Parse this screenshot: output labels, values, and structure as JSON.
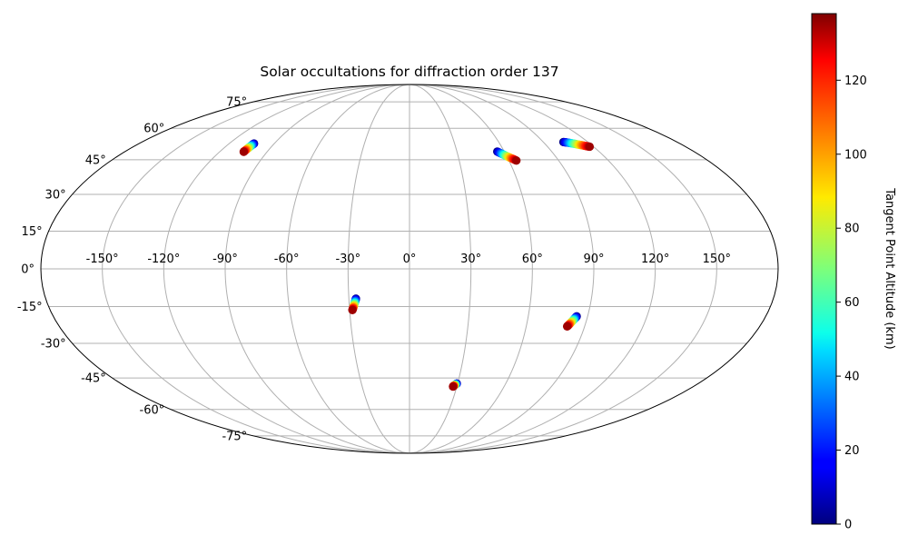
{
  "chart_data": {
    "type": "scatter",
    "projection": "mollweide",
    "title": "Solar occultations for diffraction order 137",
    "x_ticks": [
      "-150°",
      "-120°",
      "-90°",
      "-60°",
      "-30°",
      "0°",
      "30°",
      "60°",
      "90°",
      "120°",
      "150°"
    ],
    "y_ticks": [
      "75°",
      "60°",
      "45°",
      "30°",
      "15°",
      "0°",
      "-15°",
      "-30°",
      "-45°",
      "-60°",
      "-75°"
    ],
    "grid": true,
    "colorbar": {
      "label": "Tangent Point Altitude (km)",
      "colormap": "jet",
      "range": [
        0,
        138
      ],
      "ticks": [
        "0",
        "20",
        "40",
        "60",
        "80",
        "100",
        "120"
      ]
    },
    "series": [
      {
        "points": [
          {
            "lon": -103.5,
            "lat": 52.5,
            "alt": 0
          },
          {
            "lon": -103.7,
            "lat": 52.0,
            "alt": 20
          },
          {
            "lon": -103.9,
            "lat": 51.4,
            "alt": 40
          },
          {
            "lon": -104.1,
            "lat": 50.8,
            "alt": 60
          },
          {
            "lon": -104.3,
            "lat": 50.2,
            "alt": 80
          },
          {
            "lon": -104.5,
            "lat": 49.6,
            "alt": 100
          },
          {
            "lon": -104.7,
            "lat": 49.0,
            "alt": 120
          },
          {
            "lon": -104.8,
            "lat": 48.6,
            "alt": 135
          }
        ]
      },
      {
        "points": [
          {
            "lon": 55.5,
            "lat": 48.7,
            "alt": 0
          },
          {
            "lon": 56.8,
            "lat": 48.1,
            "alt": 20
          },
          {
            "lon": 58.1,
            "lat": 47.5,
            "alt": 40
          },
          {
            "lon": 59.4,
            "lat": 46.9,
            "alt": 60
          },
          {
            "lon": 60.7,
            "lat": 46.3,
            "alt": 80
          },
          {
            "lon": 62.0,
            "lat": 45.7,
            "alt": 100
          },
          {
            "lon": 63.3,
            "lat": 45.2,
            "alt": 120
          },
          {
            "lon": 64.5,
            "lat": 44.6,
            "alt": 135
          }
        ]
      },
      {
        "points": [
          {
            "lon": 103.5,
            "lat": 53.2,
            "alt": 0
          },
          {
            "lon": 105.5,
            "lat": 53.0,
            "alt": 20
          },
          {
            "lon": 107.5,
            "lat": 52.7,
            "alt": 40
          },
          {
            "lon": 109.5,
            "lat": 52.4,
            "alt": 60
          },
          {
            "lon": 111.5,
            "lat": 52.0,
            "alt": 80
          },
          {
            "lon": 113.5,
            "lat": 51.7,
            "alt": 100
          },
          {
            "lon": 115.5,
            "lat": 51.3,
            "alt": 120
          },
          {
            "lon": 117.5,
            "lat": 51.0,
            "alt": 135
          }
        ]
      },
      {
        "points": [
          {
            "lon": -26.5,
            "lat": -11.8,
            "alt": 0
          },
          {
            "lon": -26.8,
            "lat": -12.5,
            "alt": 20
          },
          {
            "lon": -27.1,
            "lat": -13.2,
            "alt": 40
          },
          {
            "lon": -27.4,
            "lat": -13.9,
            "alt": 60
          },
          {
            "lon": -27.7,
            "lat": -14.6,
            "alt": 80
          },
          {
            "lon": -28.0,
            "lat": -15.2,
            "alt": 100
          },
          {
            "lon": -28.3,
            "lat": -15.8,
            "alt": 120
          },
          {
            "lon": -28.6,
            "lat": -16.4,
            "alt": 135
          }
        ]
      },
      {
        "points": [
          {
            "lon": 84.5,
            "lat": -18.9,
            "alt": 0
          },
          {
            "lon": 84.0,
            "lat": -19.5,
            "alt": 20
          },
          {
            "lon": 83.5,
            "lat": -20.1,
            "alt": 40
          },
          {
            "lon": 83.0,
            "lat": -20.7,
            "alt": 60
          },
          {
            "lon": 82.5,
            "lat": -21.3,
            "alt": 80
          },
          {
            "lon": 82.0,
            "lat": -21.9,
            "alt": 100
          },
          {
            "lon": 81.5,
            "lat": -22.5,
            "alt": 120
          },
          {
            "lon": 81.0,
            "lat": -23.0,
            "alt": 135
          }
        ]
      },
      {
        "points": [
          {
            "lon": 29.5,
            "lat": -47.5,
            "alt": 0
          },
          {
            "lon": 29.2,
            "lat": -47.7,
            "alt": 20
          },
          {
            "lon": 28.9,
            "lat": -47.9,
            "alt": 40
          },
          {
            "lon": 28.6,
            "lat": -48.1,
            "alt": 60
          },
          {
            "lon": 28.3,
            "lat": -48.3,
            "alt": 80
          },
          {
            "lon": 28.0,
            "lat": -48.5,
            "alt": 100
          },
          {
            "lon": 27.8,
            "lat": -48.7,
            "alt": 120
          },
          {
            "lon": 27.6,
            "lat": -48.9,
            "alt": 135
          }
        ]
      }
    ]
  }
}
